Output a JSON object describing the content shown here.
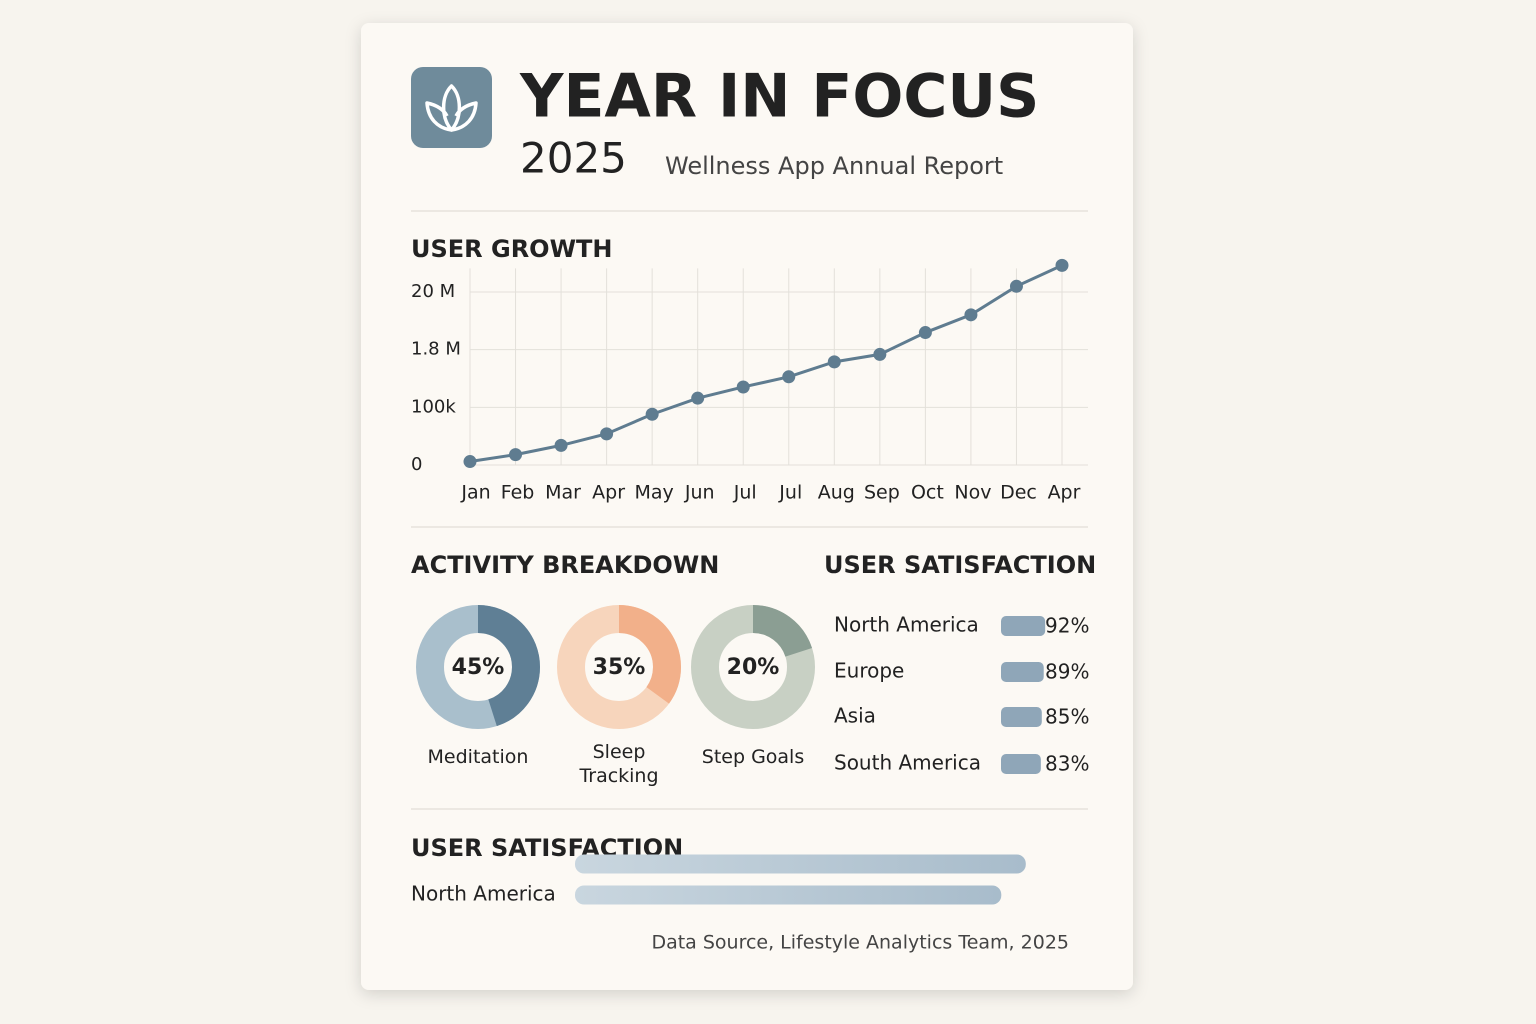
{
  "header": {
    "title": "YEAR IN FOCUS",
    "year": "2025",
    "subtitle": "Wellness App Annual Report"
  },
  "chart_data": [
    {
      "type": "line",
      "title": "USER GROWTH",
      "categories": [
        "Jan",
        "Feb",
        "Mar",
        "Apr",
        "May",
        "Jun",
        "Jul",
        "Jul",
        "Aug",
        "Sep",
        "Oct",
        "Nov",
        "Dec",
        "Apr"
      ],
      "values": [
        0.006,
        0.018,
        0.034,
        0.054,
        0.088,
        0.37,
        0.7,
        1.0,
        1.44,
        1.66,
        7.2,
        12.8,
        21.8,
        28.4
      ],
      "color": "#5f7c90",
      "ylim": [
        0,
        30
      ],
      "yticks": [
        0,
        {
          "value": 0.1,
          "label": "100k"
        },
        {
          "value": 1.8,
          "label": "1.8 M"
        },
        {
          "value": 20,
          "label": "20 M"
        }
      ],
      "grid": true
    },
    {
      "type": "donut",
      "title": "ACTIVITY BREAKDOWN",
      "categories": [
        "Meditation",
        "Sleep Tracking",
        "Step Goals"
      ],
      "values": [
        45,
        35,
        20
      ],
      "value_labels": [
        "45%",
        "35%",
        "20%"
      ],
      "colors": [
        "#5f7f95",
        "#f2b08a",
        "#8b9e93"
      ],
      "track_colors": [
        "#a9bfcc",
        "#f7d5bc",
        "#c8d0c4"
      ]
    },
    {
      "type": "hbar",
      "title": "USER SATISFACTION",
      "categories": [
        "North America",
        "Europe",
        "Asia",
        "South America"
      ],
      "values": [
        92,
        89,
        85,
        83
      ],
      "value_labels": [
        "92%",
        "89%",
        "85%",
        "83%"
      ],
      "color": "#8fa6b8",
      "xlim": [
        0,
        100
      ]
    },
    {
      "type": "hbar",
      "title": "USER SATISFACTION",
      "categories": [
        null,
        "North America"
      ],
      "values": [
        92,
        87
      ],
      "color": "#b3c4d1",
      "xlim": [
        0,
        100
      ]
    }
  ],
  "footer": "Data Source, Lifestyle Analytics Team, 2025"
}
